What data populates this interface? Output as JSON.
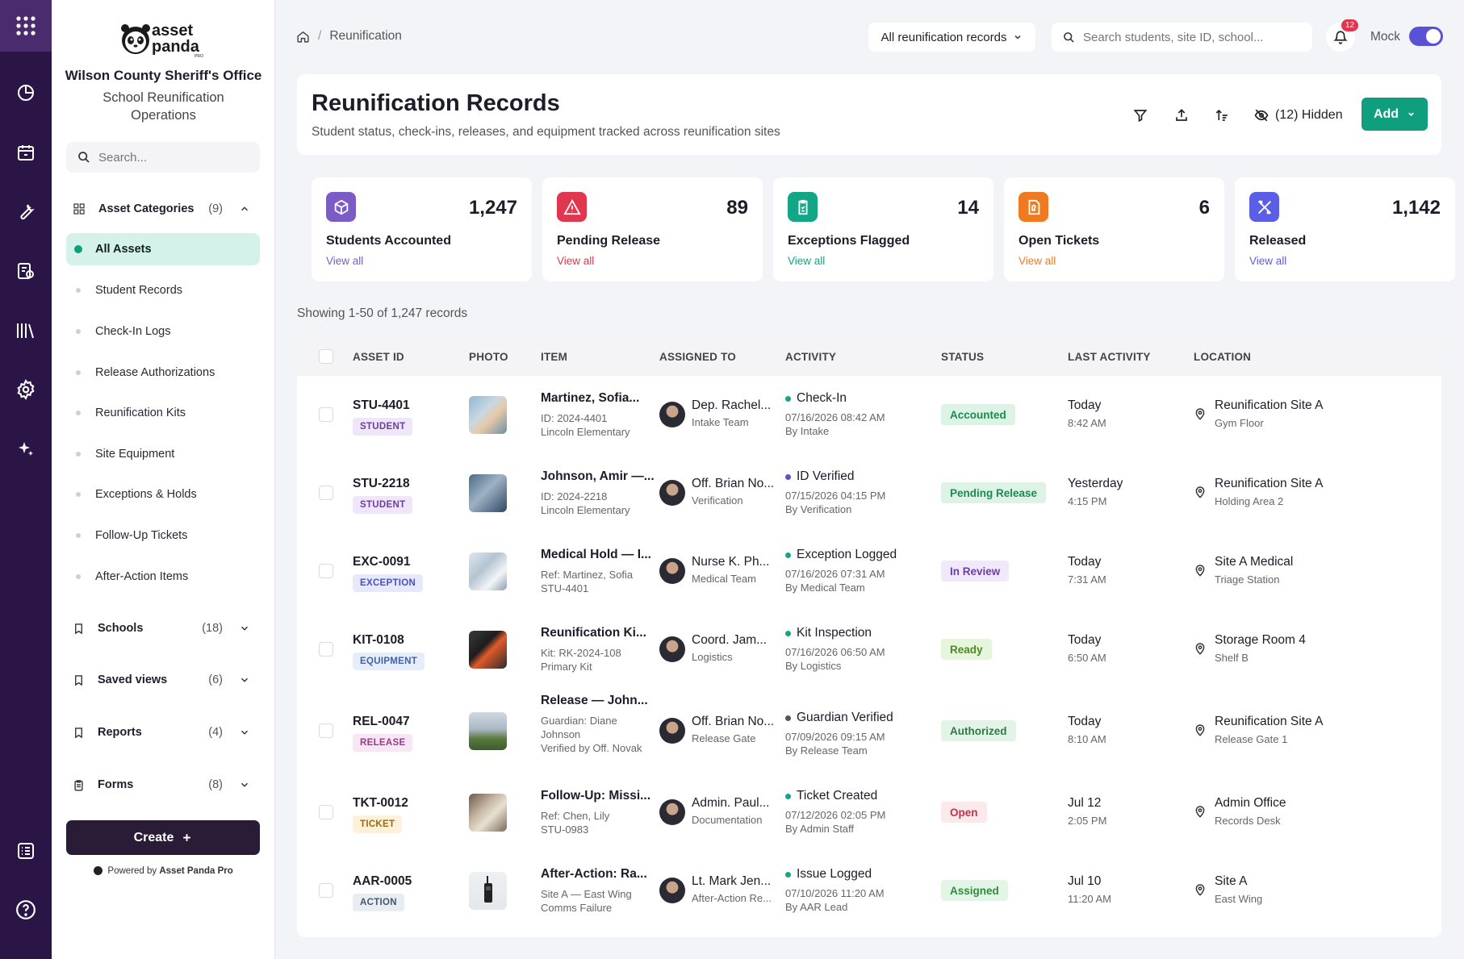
{
  "sidebar": {
    "logo_text": "asset panda PRO",
    "org": "Wilson County Sheriff's Office",
    "dept_line1": "School Reunification",
    "dept_line2": "Operations",
    "search_placeholder": "Search...",
    "categories": {
      "label": "Asset Categories",
      "count": "(9)"
    },
    "items": [
      {
        "label": "All Assets",
        "active": true
      },
      {
        "label": "Student Records"
      },
      {
        "label": "Check-In Logs"
      },
      {
        "label": "Release Authorizations"
      },
      {
        "label": "Reunification Kits"
      },
      {
        "label": "Site Equipment"
      },
      {
        "label": "Exceptions & Holds"
      },
      {
        "label": "Follow-Up Tickets"
      },
      {
        "label": "After-Action Items"
      }
    ],
    "sections": [
      {
        "label": "Schools",
        "count": "(18)",
        "icon": "bookmark-icon"
      },
      {
        "label": "Saved views",
        "count": "(6)",
        "icon": "bookmark-icon"
      },
      {
        "label": "Reports",
        "count": "(4)",
        "icon": "bookmark-icon"
      },
      {
        "label": "Forms",
        "count": "(8)",
        "icon": "clipboard-icon"
      }
    ],
    "create_label": "Create",
    "powered_prefix": "Powered by",
    "powered_brand": "Asset Panda Pro"
  },
  "topbar": {
    "breadcrumb_sep": "/",
    "breadcrumb_page": "Reunification",
    "filter_label": "All reunification records",
    "search_placeholder": "Search students, site ID, school...",
    "notif_count": "12",
    "mock_label": "Mock",
    "mock_on": true
  },
  "header": {
    "title": "Reunification Records",
    "subtitle": "Student status, check-ins, releases, and equipment tracked across reunification sites",
    "hidden_label": "(12) Hidden",
    "add_label": "Add"
  },
  "stats": [
    {
      "value": "1,247",
      "label": "Students Accounted",
      "link": "View all",
      "color": "#7b5cc7"
    },
    {
      "value": "89",
      "label": "Pending Release",
      "link": "View all",
      "color": "#e0364e"
    },
    {
      "value": "14",
      "label": "Exceptions Flagged",
      "link": "View all",
      "color": "#12a586"
    },
    {
      "value": "6",
      "label": "Open Tickets",
      "link": "View all",
      "color": "#f07a1f"
    },
    {
      "value": "1,142",
      "label": "Released",
      "link": "View all",
      "color": "#5a5ee6"
    }
  ],
  "showing": "Showing 1-50 of 1,247 records",
  "table": {
    "columns": [
      "ASSET ID",
      "PHOTO",
      "ITEM",
      "ASSIGNED TO",
      "ACTIVITY",
      "STATUS",
      "LAST ACTIVITY",
      "LOCATION"
    ],
    "rows": [
      {
        "id": "STU-4401",
        "tag": "STUDENT",
        "item": "Martinez, Sofia...",
        "item_sub1": "ID: 2024-4401",
        "item_sub2": "Lincoln Elementary",
        "item_sub3": "",
        "assignee": "Dep. Rachel...",
        "team": "Intake Team",
        "activity": "Check-In",
        "act_date": "07/16/2026 08:42 AM",
        "act_by": "By Intake",
        "status": "Accounted",
        "last1": "Today",
        "last2": "8:42 AM",
        "loc1": "Reunification Site A",
        "loc2": "Gym Floor"
      },
      {
        "id": "STU-2218",
        "tag": "STUDENT",
        "item": "Johnson, Amir —...",
        "item_sub1": "ID: 2024-2218",
        "item_sub2": "Lincoln Elementary",
        "item_sub3": "",
        "assignee": "Off. Brian No...",
        "team": "Verification",
        "activity": "ID Verified",
        "act_date": "07/15/2026 04:15 PM",
        "act_by": "By Verification",
        "status": "Pending Release",
        "last1": "Yesterday",
        "last2": "4:15 PM",
        "loc1": "Reunification Site A",
        "loc2": "Holding Area 2"
      },
      {
        "id": "EXC-0091",
        "tag": "EXCEPTION",
        "item": "Medical Hold — I...",
        "item_sub1": "Ref: Martinez, Sofia",
        "item_sub2": "STU-4401",
        "item_sub3": "",
        "assignee": "Nurse K. Ph...",
        "team": "Medical Team",
        "activity": "Exception Logged",
        "act_date": "07/16/2026 07:31 AM",
        "act_by": "By Medical Team",
        "status": "In Review",
        "last1": "Today",
        "last2": "7:31 AM",
        "loc1": "Site A Medical",
        "loc2": "Triage Station"
      },
      {
        "id": "KIT-0108",
        "tag": "EQUIPMENT",
        "item": "Reunification Ki...",
        "item_sub1": "Kit: RK-2024-108",
        "item_sub2": "Primary Kit",
        "item_sub3": "",
        "assignee": "Coord. Jam...",
        "team": "Logistics",
        "activity": "Kit Inspection",
        "act_date": "07/16/2026 06:50 AM",
        "act_by": "By Logistics",
        "status": "Ready",
        "last1": "Today",
        "last2": "6:50 AM",
        "loc1": "Storage Room 4",
        "loc2": "Shelf B"
      },
      {
        "id": "REL-0047",
        "tag": "RELEASE",
        "item": "Release — John...",
        "item_sub1": "Guardian: Diane",
        "item_sub2": "Johnson",
        "item_sub3": "Verified by Off. Novak",
        "assignee": "Off. Brian No...",
        "team": "Release Gate",
        "activity": "Guardian Verified",
        "act_date": "07/09/2026 09:15 AM",
        "act_by": "By Release Team",
        "status": "Authorized",
        "last1": "Today",
        "last2": "8:10 AM",
        "loc1": "Reunification Site A",
        "loc2": "Release Gate 1"
      },
      {
        "id": "TKT-0012",
        "tag": "TICKET",
        "item": "Follow-Up: Missi...",
        "item_sub1": "Ref: Chen, Lily",
        "item_sub2": "STU-0983",
        "item_sub3": "",
        "assignee": "Admin. Paul...",
        "team": "Documentation",
        "activity": "Ticket Created",
        "act_date": "07/12/2026 02:05 PM",
        "act_by": "By Admin Staff",
        "status": "Open",
        "last1": "Jul 12",
        "last2": "2:05 PM",
        "loc1": "Admin Office",
        "loc2": "Records Desk"
      },
      {
        "id": "AAR-0005",
        "tag": "ACTION",
        "item": "After-Action: Ra...",
        "item_sub1": "Site A — East Wing",
        "item_sub2": "Comms Failure",
        "item_sub3": "",
        "assignee": "Lt. Mark Jen...",
        "team": "After-Action Re...",
        "activity": "Issue Logged",
        "act_date": "07/10/2026 11:20 AM",
        "act_by": "By AAR Lead",
        "status": "Assigned",
        "last1": "Jul 10",
        "last2": "11:20 AM",
        "loc1": "Site A",
        "loc2": "East Wing"
      }
    ]
  },
  "colors": {
    "rail": "#2b1446",
    "accent_green": "#0f9f7e",
    "toggle": "#5a52d6",
    "create": "#2a1c37"
  }
}
